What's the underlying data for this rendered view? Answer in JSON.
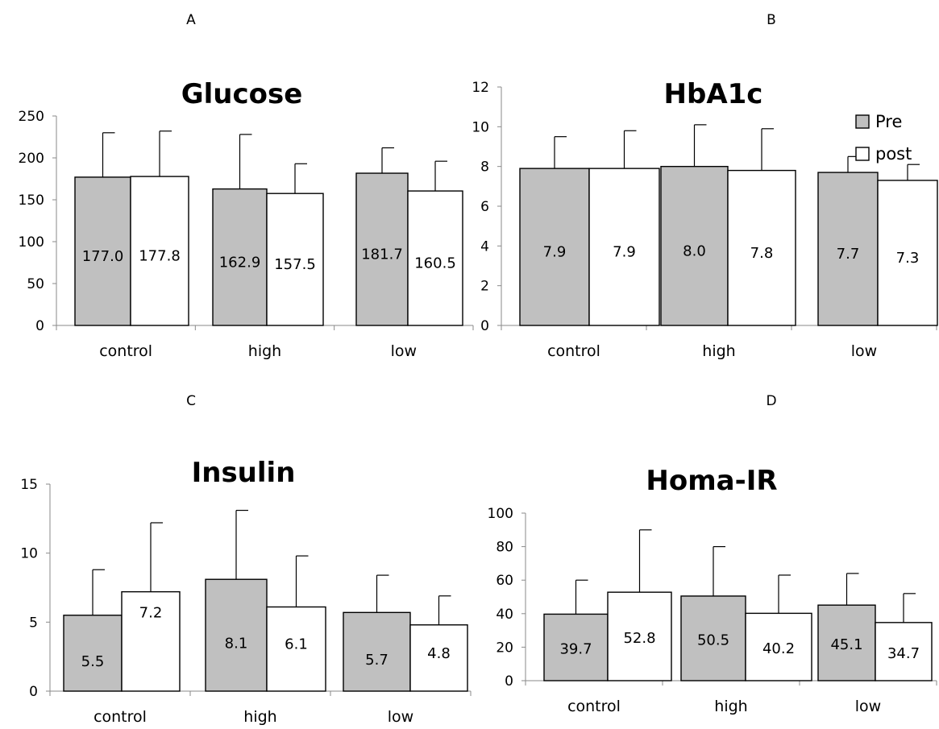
{
  "legend": [
    {
      "label": "Pre",
      "color": "#c0c0c0"
    },
    {
      "label": "post",
      "color": "#ffffff"
    }
  ],
  "chart_data": [
    {
      "type": "bar",
      "panel_label": "A",
      "title": "Glucose",
      "categories": [
        "control",
        "high",
        "low"
      ],
      "ylim": [
        0,
        250
      ],
      "yticks": [
        "0",
        "50",
        "100",
        "150",
        "200",
        "250"
      ],
      "series": [
        {
          "name": "Pre",
          "color": "#c0c0c0",
          "values": [
            177.0,
            162.9,
            181.7
          ],
          "labels": [
            "177.0",
            "162.9",
            "181.7"
          ],
          "error_tops": [
            230,
            228,
            212
          ]
        },
        {
          "name": "post",
          "color": "#ffffff",
          "values": [
            177.8,
            157.5,
            160.5
          ],
          "labels": [
            "177.8",
            "157.5",
            "160.5"
          ],
          "error_tops": [
            232,
            193,
            196
          ]
        }
      ]
    },
    {
      "type": "bar",
      "panel_label": "B",
      "title": "HbA1c",
      "categories": [
        "control",
        "high",
        "low"
      ],
      "ylim": [
        0,
        12
      ],
      "yticks": [
        "0",
        "2",
        "4",
        "6",
        "8",
        "10",
        "12"
      ],
      "legend_position": "top-right",
      "series": [
        {
          "name": "Pre",
          "color": "#c0c0c0",
          "values": [
            7.9,
            8.0,
            7.7
          ],
          "labels": [
            "7.9",
            "8.0",
            "7.7"
          ],
          "error_tops": [
            9.5,
            10.1,
            8.5
          ]
        },
        {
          "name": "post",
          "color": "#ffffff",
          "values": [
            7.9,
            7.8,
            7.3
          ],
          "labels": [
            "7.9",
            "7.8",
            "7.3"
          ],
          "error_tops": [
            9.8,
            9.9,
            8.1
          ]
        }
      ]
    },
    {
      "type": "bar",
      "panel_label": "C",
      "title": "Insulin",
      "categories": [
        "control",
        "high",
        "low"
      ],
      "ylim": [
        0,
        15
      ],
      "yticks": [
        "0",
        "5",
        "10",
        "15"
      ],
      "series": [
        {
          "name": "Pre",
          "color": "#c0c0c0",
          "values": [
            5.5,
            8.1,
            5.7
          ],
          "labels": [
            "5.5",
            "8.1",
            "5.7"
          ],
          "error_tops": [
            8.8,
            13.1,
            8.4
          ]
        },
        {
          "name": "post",
          "color": "#ffffff",
          "values": [
            7.2,
            6.1,
            4.8
          ],
          "labels": [
            "7.2",
            "6.1",
            "4.8"
          ],
          "error_tops": [
            12.2,
            9.8,
            6.9
          ]
        }
      ]
    },
    {
      "type": "bar",
      "panel_label": "D",
      "title": "Homa-IR",
      "categories": [
        "control",
        "high",
        "low"
      ],
      "ylim": [
        0,
        100
      ],
      "yticks": [
        "0",
        "20",
        "40",
        "60",
        "80",
        "100"
      ],
      "series": [
        {
          "name": "Pre",
          "color": "#c0c0c0",
          "values": [
            39.7,
            50.5,
            45.1
          ],
          "labels": [
            "39.7",
            "50.5",
            "45.1"
          ],
          "error_tops": [
            60,
            80,
            64
          ]
        },
        {
          "name": "post",
          "color": "#ffffff",
          "values": [
            52.8,
            40.2,
            34.7
          ],
          "labels": [
            "52.8",
            "40.2",
            "34.7"
          ],
          "error_tops": [
            90,
            63,
            52
          ]
        }
      ]
    }
  ]
}
